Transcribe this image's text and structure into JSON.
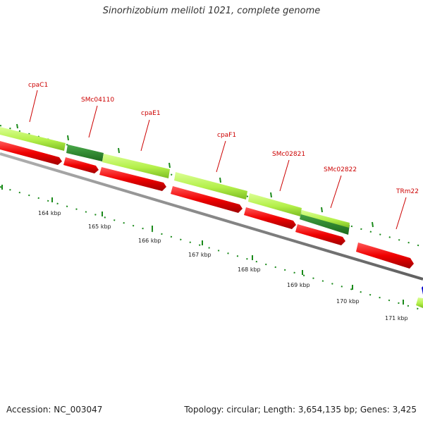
{
  "title": "Sinorhizobium meliloti 1021, complete genome",
  "footer": {
    "accession": "Accession: NC_003047",
    "summary": "Topology: circular; Length: 3,654,135 bp; Genes: 3,425"
  },
  "colors": {
    "cds_forward": "#bbf54f",
    "cds_forward_dark": "#2e8b2e",
    "cds_reverse": "#f00000",
    "backbone": "#888888",
    "tick": "#1a8a1a",
    "gene_label": "#cc0000",
    "marker": "#0000cc"
  },
  "gene_labels": [
    "cpaC1",
    "SMc04110",
    "cpaE1",
    "cpaF1",
    "SMc02821",
    "SMc02822",
    "TRm22"
  ],
  "scale_labels": [
    "164 kbp",
    "165 kbp",
    "166 kbp",
    "167 kbp",
    "168 kbp",
    "169 kbp",
    "170 kbp",
    "171 kbp"
  ]
}
